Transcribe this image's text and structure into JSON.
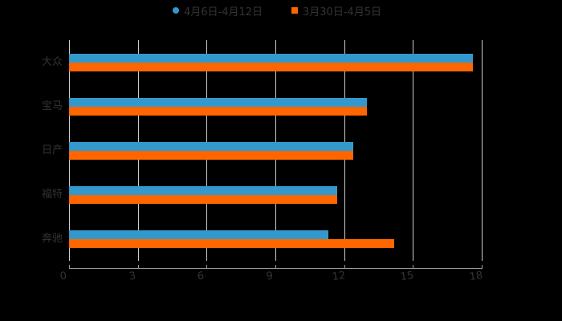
{
  "chart_data": {
    "type": "bar",
    "orientation": "horizontal",
    "title": "",
    "xlabel": "",
    "ylabel": "",
    "categories": [
      "大众",
      "宝马",
      "日产",
      "福特",
      "奔驰"
    ],
    "series": [
      {
        "name": "4月6日-4月12日",
        "color": "#3399cc",
        "marker": "circle",
        "values": [
          17.6,
          13.0,
          12.4,
          11.7,
          11.3
        ]
      },
      {
        "name": "3月30日-4月5日",
        "color": "#ff6600",
        "marker": "square",
        "values": [
          17.6,
          13.0,
          12.4,
          11.7,
          14.2
        ]
      }
    ],
    "xlim": [
      0,
      18
    ],
    "x_ticks": [
      "0",
      "3",
      "6",
      "9",
      "12",
      "15",
      "18"
    ],
    "grid": true,
    "legend_position": "top"
  },
  "legend": {
    "items": [
      {
        "label": "4月6日-4月12日"
      },
      {
        "label": "3月30日-4月5日"
      }
    ]
  }
}
